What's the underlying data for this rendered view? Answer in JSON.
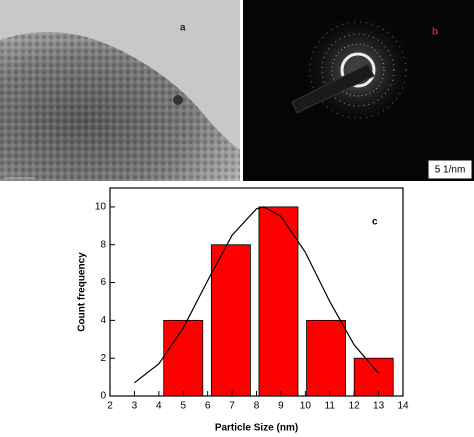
{
  "panels": {
    "a": "a",
    "b": "b",
    "scale_bar": "5 1/nm"
  },
  "chart_data": {
    "type": "histogram",
    "annotation": "c",
    "x_label": "Particle Size (nm)",
    "y_label": "Count frequency",
    "bins": [
      4.2,
      6.15,
      8.1,
      10.05,
      12.0,
      13.95
    ],
    "counts": [
      4,
      8,
      10,
      4,
      2
    ],
    "color": "#ff0000",
    "fit": {
      "x": [
        3,
        4,
        5,
        6,
        7,
        8,
        8.3,
        9,
        10,
        11,
        12,
        13
      ],
      "values": [
        0.7,
        1.7,
        3.6,
        6.1,
        8.5,
        9.9,
        10,
        9.5,
        7.6,
        5.0,
        2.7,
        1.2
      ],
      "color": "#000000"
    },
    "xlim": [
      2,
      14
    ],
    "xticks": [
      2,
      3,
      4,
      5,
      6,
      7,
      8,
      9,
      10,
      11,
      12,
      13,
      14
    ],
    "ylim": [
      0,
      11
    ],
    "yticks": [
      0,
      2,
      4,
      6,
      8,
      10
    ]
  }
}
